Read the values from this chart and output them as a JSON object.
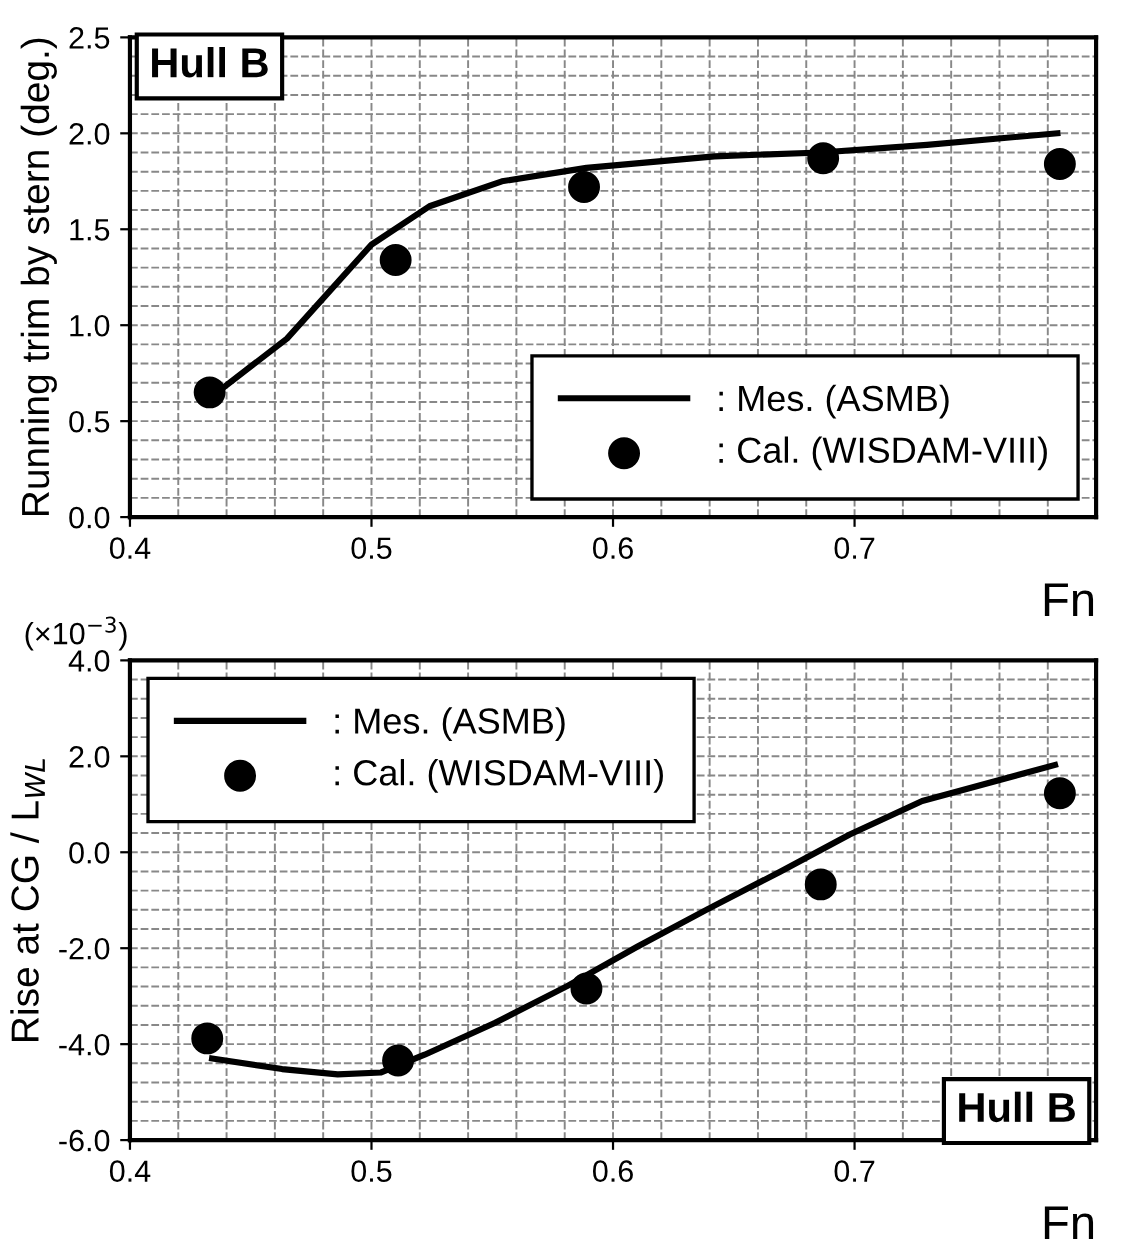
{
  "chart_data": [
    {
      "type": "line",
      "xlabel": "Fn",
      "ylabel": "Running trim by stern (deg.)",
      "annotations": [
        "Hull B"
      ],
      "xlim": [
        0.4,
        0.8
      ],
      "xticks": [
        0.4,
        0.5,
        0.6,
        0.7
      ],
      "ylim": [
        0.0,
        2.5
      ],
      "yticks": [
        {
          "value": 0,
          "label": "0.0"
        },
        0.5,
        {
          "value": 1,
          "label": "1.0"
        },
        1.5,
        {
          "value": 2,
          "label": "2.0"
        },
        2.5
      ],
      "grid": true,
      "legend": "bottom right",
      "series": [
        {
          "name": ": Mes. (ASMB)",
          "color": "#000000",
          "marker": "none",
          "line_style": "solid",
          "x": [
            0.433,
            0.465,
            0.5,
            0.524,
            0.554,
            0.589,
            0.642,
            0.686,
            0.73,
            0.784
          ],
          "values": [
            0.62,
            0.93,
            1.42,
            1.62,
            1.75,
            1.82,
            1.88,
            1.9,
            1.94,
            2.0
          ]
        },
        {
          "name": ": Cal. (WISDAM-VIII)",
          "type": "scatter",
          "color": "#000000",
          "marker": "circle",
          "x": [
            0.433,
            0.51,
            0.588,
            0.687,
            0.785
          ],
          "values": [
            0.65,
            1.34,
            1.72,
            1.87,
            1.84
          ]
        }
      ]
    },
    {
      "type": "line",
      "xlabel": "Fn",
      "ylabel": "Rise at CG / L$_{WL}$",
      "annotations": [
        "(×10$^{−3}$)",
        "Hull B"
      ],
      "xlim": [
        0.4,
        0.8
      ],
      "xticks": [
        0.4,
        0.5,
        0.6,
        0.7
      ],
      "ylim": [
        -6.0,
        4.0
      ],
      "yticks": [
        {
          "value": -6,
          "label": "-6.0"
        },
        {
          "value": -4,
          "label": "-4.0"
        },
        {
          "value": -2,
          "label": "-2.0"
        },
        {
          "value": 0,
          "label": "0.0"
        },
        {
          "value": 2,
          "label": "2.0"
        },
        {
          "value": 4,
          "label": "4.0"
        }
      ],
      "grid": true,
      "legend": "top left",
      "series": [
        {
          "name": ": Mes. (ASMB)",
          "color": "#000000",
          "marker": "none",
          "line_style": "solid",
          "x": [
            0.434,
            0.463,
            0.486,
            0.504,
            0.522,
            0.551,
            0.581,
            0.61,
            0.639,
            0.669,
            0.698,
            0.728,
            0.783
          ],
          "values": [
            -4.3,
            -4.52,
            -4.63,
            -4.59,
            -4.22,
            -3.56,
            -2.79,
            -1.97,
            -1.19,
            -0.41,
            0.37,
            1.07,
            1.82
          ]
        },
        {
          "name": ": Cal. (WISDAM-VIII)",
          "type": "scatter",
          "color": "#000000",
          "marker": "circle",
          "x": [
            0.432,
            0.511,
            0.589,
            0.686,
            0.785
          ],
          "values": [
            -3.88,
            -4.34,
            -2.84,
            -0.67,
            1.23
          ]
        }
      ]
    }
  ]
}
